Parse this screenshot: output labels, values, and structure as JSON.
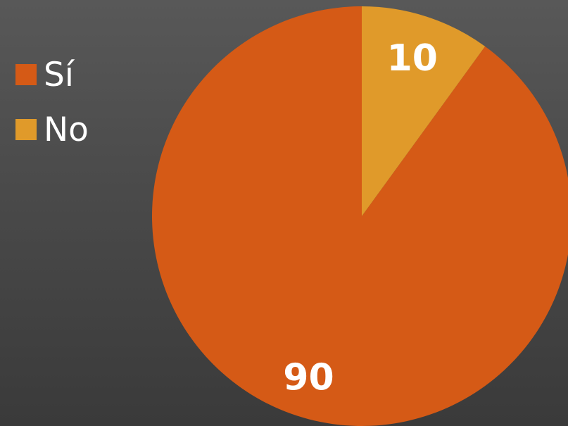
{
  "chart_data": {
    "type": "pie",
    "categories": [
      "Sí",
      "No"
    ],
    "values": [
      90,
      10
    ],
    "data_labels": [
      "90",
      "10"
    ],
    "colors": [
      "#d55a16",
      "#e09a2a"
    ],
    "start_angle_deg": 0,
    "direction": "counterclockwise",
    "legend": {
      "position": "left",
      "entries": [
        "Sí",
        "No"
      ]
    },
    "title": ""
  }
}
